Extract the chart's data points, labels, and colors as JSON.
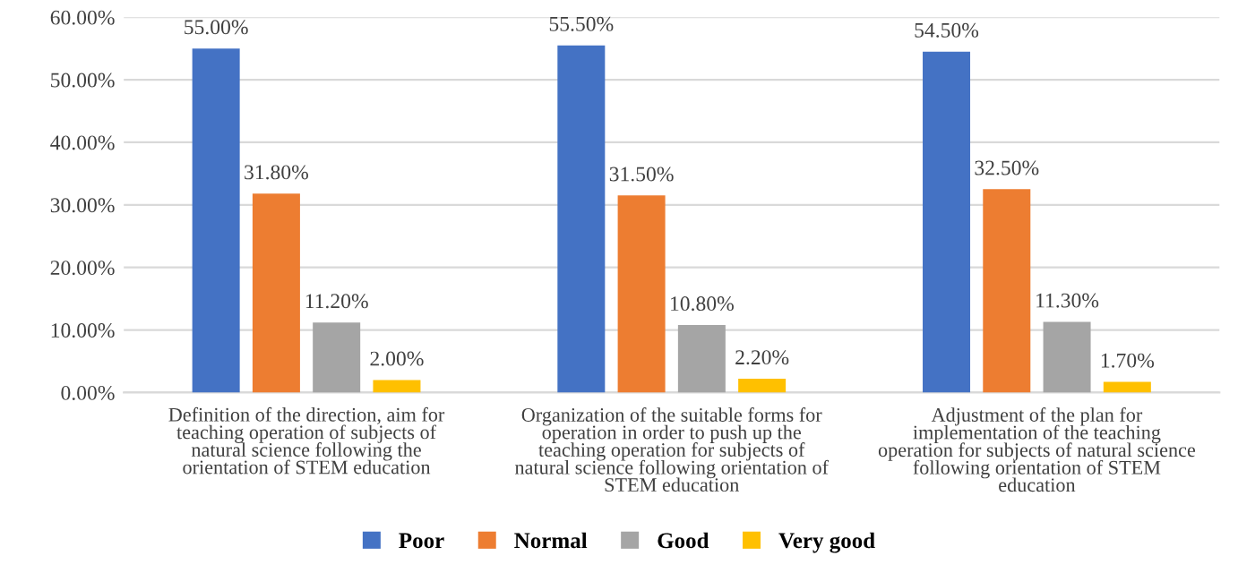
{
  "chart_data": {
    "type": "bar",
    "categories": [
      "Definition of the direction, aim for\nteaching operation of subjects of\nnatural science following the\norientation of STEM education",
      "Organization of the suitable forms for\noperation in order to push up the\nteaching operation for subjects of\nnatural science following orientation of\nSTEM education",
      "Adjustment of the plan for\nimplementation of the teaching\noperation for subjects of natural science\nfollowing orientation of STEM\neducation"
    ],
    "series": [
      {
        "name": "Poor",
        "color": "#4472c4",
        "values": [
          55.0,
          55.5,
          54.5
        ],
        "value_labels": [
          "55.00%",
          "55.50%",
          "54.50%"
        ]
      },
      {
        "name": "Normal",
        "color": "#ed7d31",
        "values": [
          31.8,
          31.5,
          32.5
        ],
        "value_labels": [
          "31.80%",
          "31.50%",
          "32.50%"
        ]
      },
      {
        "name": "Good",
        "color": "#a5a5a5",
        "values": [
          11.2,
          10.8,
          11.3
        ],
        "value_labels": [
          "11.20%",
          "10.80%",
          "11.30%"
        ]
      },
      {
        "name": "Very good",
        "color": "#ffc000",
        "values": [
          2.0,
          2.2,
          1.7
        ],
        "value_labels": [
          "2.00%",
          "2.20%",
          "1.70%"
        ]
      }
    ],
    "ylim": [
      0,
      60
    ],
    "yticks": [
      {
        "value": 0,
        "label": "0.00%"
      },
      {
        "value": 10,
        "label": "10.00%"
      },
      {
        "value": 20,
        "label": "20.00%"
      },
      {
        "value": 30,
        "label": "30.00%"
      },
      {
        "value": 40,
        "label": "40.00%"
      },
      {
        "value": 50,
        "label": "50.00%"
      },
      {
        "value": 60,
        "label": "60.00%"
      }
    ],
    "grid": "y",
    "legend": "bottom"
  }
}
